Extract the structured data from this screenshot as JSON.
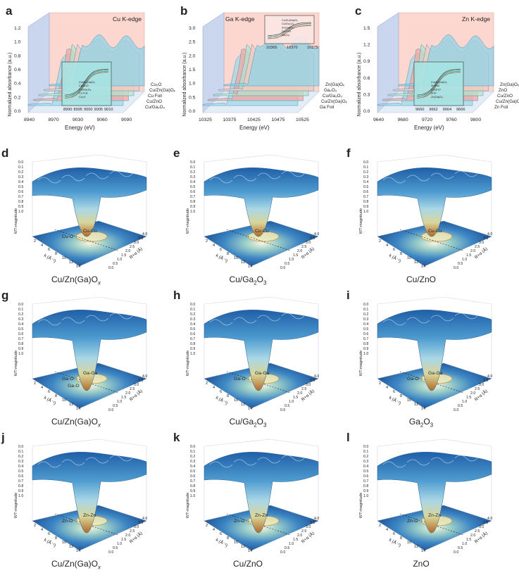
{
  "figure": {
    "xanes_panels": [
      {
        "letter": "a",
        "edge_label": "Cu K-edge",
        "ylabel": "Normalized absorbance (a.u.)",
        "xlabel": "Energy (eV)",
        "x_ticks": [
          "8940",
          "8970",
          "9030",
          "9060",
          "9090"
        ],
        "y_ticks": [
          "0.0",
          "0.2",
          "0.4",
          "0.6",
          "0.8",
          "1.0",
          "1.2"
        ],
        "series": [
          "Cu2O",
          "Cu/Zn(Ga)Ox",
          "Cu Foil",
          "Cu/ZnO",
          "Cu/Ga2O3"
        ],
        "series_display": [
          "Cu₂O",
          "Cu/Zn(Ga)Oₓ",
          "Cu Foil",
          "Cu/ZnO",
          "Cu/Ga₂O₃"
        ],
        "inset_x_ticks": [
          "8990",
          "8995",
          "9000",
          "9005",
          "9010"
        ],
        "inset_legend": [
          "Cu/Zn(Ga)Oₓ",
          "Cu/ZnO",
          "Cu/Ga₂O₃",
          "Cu Foil",
          "Cu₂O"
        ],
        "colors": [
          "#9fd9e8",
          "#f2a7a0",
          "#b7e2c9",
          "#f7c9c1",
          "#8fd3e6"
        ]
      },
      {
        "letter": "b",
        "edge_label": "Ga K-edge",
        "ylabel": "Normalized absorbance (a.u.)",
        "xlabel": "Energy (eV)",
        "x_ticks": [
          "10325",
          "10375",
          "10425",
          "10475",
          "10525"
        ],
        "y_ticks": [
          "0.0",
          "0.5",
          "1.0",
          "1.5",
          "2.0",
          "2.5",
          "3.0"
        ],
        "series": [
          "Zn(Ga)Ox",
          "Ga2O3",
          "Cu/Ga2O3",
          "Cu/Zn(Ga)Ox",
          "Ga Foil"
        ],
        "series_display": [
          "Zn(Ga)Oₓ",
          "Ga₂O₃",
          "Cu/Ga₂O₃",
          "Cu/Zn(Ga)Oₓ",
          "Ga Foil"
        ],
        "inset_x_ticks": [
          "10365",
          "10370",
          "10375"
        ],
        "inset_legend": [
          "Cu/Zn(Ga)Oₓ",
          "Cu/Ga₂O₃",
          "Zn(Ga)Oₓ",
          "Ga Foil",
          "Ga₂O₃"
        ],
        "colors": [
          "#9fd9e8",
          "#f2a7a0",
          "#b7e2c9",
          "#f7c9c1",
          "#8fd3e6"
        ]
      },
      {
        "letter": "c",
        "edge_label": "Zn K-edge",
        "ylabel": "Normalized absorbance (a.u.)",
        "xlabel": "Energy (eV)",
        "x_ticks": [
          "9640",
          "9680",
          "9720",
          "9760",
          "9800"
        ],
        "y_ticks": [
          "0.0",
          "0.3",
          "0.6",
          "0.9",
          "1.2",
          "1.5"
        ],
        "series": [
          "Zn(Ga)Ox",
          "ZnO",
          "Cu/ZnO",
          "Cu/Zn(Ga)Ox",
          "Zn Foil"
        ],
        "series_display": [
          "Zn(Ga)Oₓ",
          "ZnO",
          "Cu/ZnO",
          "Cu/Zn(Ga)Oₓ",
          "Zn Foil"
        ],
        "inset_x_ticks": [
          "9660",
          "9662",
          "9664",
          "9666"
        ],
        "inset_legend": [
          "Cu/Zn(Ga)Oₓ",
          "Zn Foil",
          "Cu/ZnO",
          "ZnO",
          "Zn(Ga)Oₓ"
        ],
        "colors": [
          "#9fd9e8",
          "#f2a7a0",
          "#b7e2c9",
          "#f7c9c1",
          "#8fd3e6"
        ]
      }
    ],
    "wt_panels": [
      {
        "letter": "d",
        "caption_main": "Cu/Zn(Ga)O",
        "caption_sub": "x",
        "labels": [
          "Cu-Cu",
          "Cu-O"
        ],
        "zlabel": "WT-magnitude",
        "xlabel": "k (Å⁻¹)",
        "ylabel": "R+α (Å)"
      },
      {
        "letter": "e",
        "caption_main": "Cu/Ga",
        "caption_sub": "2",
        "caption_tail": "O",
        "caption_sub2": "3",
        "labels": [
          "Cu-Cu"
        ],
        "zlabel": "WT-magnitude",
        "xlabel": "k (Å⁻¹)",
        "ylabel": "R+α (Å)"
      },
      {
        "letter": "f",
        "caption_main": "Cu/ZnO",
        "labels": [
          "Cu-Cu"
        ],
        "zlabel": "WT-magnitude",
        "xlabel": "k (Å⁻¹)",
        "ylabel": "R+α (Å)"
      },
      {
        "letter": "g",
        "caption_main": "Cu/Zn(Ga)O",
        "caption_sub": "x",
        "labels": [
          "Ga-Ga",
          "Ga-O",
          "Ga-O"
        ],
        "zlabel": "WT-magnitude",
        "xlabel": "k (Å⁻¹)",
        "ylabel": "R+α (Å)"
      },
      {
        "letter": "h",
        "caption_main": "Cu/Ga",
        "caption_sub": "2",
        "caption_tail": "O",
        "caption_sub2": "3",
        "labels": [
          "Ga-Ga",
          "Ga-O"
        ],
        "zlabel": "WT-magnitude",
        "xlabel": "k (Å⁻¹)",
        "ylabel": "R+α (Å)"
      },
      {
        "letter": "i",
        "caption_main": "Ga",
        "caption_sub": "2",
        "caption_tail": "O",
        "caption_sub2": "3",
        "labels": [
          "Ga-Ga",
          "Ga-O"
        ],
        "zlabel": "WT-magnitude",
        "xlabel": "k (Å⁻¹)",
        "ylabel": "R+α (Å)"
      },
      {
        "letter": "j",
        "caption_main": "Cu/Zn(Ga)O",
        "caption_sub": "x",
        "labels": [
          "Zn-Zn",
          "Zn-O"
        ],
        "zlabel": "WT-magnitude",
        "xlabel": "k (Å⁻¹)",
        "ylabel": "R+α (Å)"
      },
      {
        "letter": "k",
        "caption_main": "Cu/ZnO",
        "labels": [
          "Zn-Zn",
          "Zn-O"
        ],
        "zlabel": "WT-magnitude",
        "xlabel": "k (Å⁻¹)",
        "ylabel": "R+α (Å)"
      },
      {
        "letter": "l",
        "caption_main": "ZnO",
        "labels": [
          "Zn-Zn",
          "Zn-O"
        ],
        "zlabel": "WT-magnitude",
        "xlabel": "k (Å⁻¹)",
        "ylabel": "R+α (Å)"
      }
    ],
    "wt_z_ticks": [
      "0.0",
      "0.1",
      "0.2",
      "0.3",
      "0.4",
      "0.5",
      "0.6",
      "0.7",
      "0.8",
      "0.9",
      "1.0"
    ],
    "wt_k_ticks": [
      "2",
      "4",
      "6",
      "8",
      "10",
      "12",
      "14"
    ],
    "wt_r_ticks": [
      "0.0",
      "0.5",
      "1.0",
      "1.5",
      "2.0",
      "2.5",
      "3.0",
      "3.5",
      "4.0"
    ]
  },
  "chart_data": [
    {
      "type": "line",
      "title": "Cu K-edge",
      "xlabel": "Energy (eV)",
      "ylabel": "Normalized absorbance (a.u.)",
      "xlim": [
        8940,
        9090
      ],
      "ylim": [
        0.0,
        1.2
      ],
      "series": [
        {
          "name": "Cu₂O"
        },
        {
          "name": "Cu/Zn(Ga)Oₓ"
        },
        {
          "name": "Cu Foil"
        },
        {
          "name": "Cu/ZnO"
        },
        {
          "name": "Cu/Ga₂O₃"
        }
      ]
    },
    {
      "type": "line",
      "title": "Ga K-edge",
      "xlabel": "Energy (eV)",
      "ylabel": "Normalized absorbance (a.u.)",
      "xlim": [
        10325,
        10525
      ],
      "ylim": [
        0.0,
        3.0
      ],
      "series": [
        {
          "name": "Zn(Ga)Oₓ"
        },
        {
          "name": "Ga₂O₃"
        },
        {
          "name": "Cu/Ga₂O₃"
        },
        {
          "name": "Cu/Zn(Ga)Oₓ"
        },
        {
          "name": "Ga Foil"
        }
      ]
    },
    {
      "type": "line",
      "title": "Zn K-edge",
      "xlabel": "Energy (eV)",
      "ylabel": "Normalized absorbance (a.u.)",
      "xlim": [
        9640,
        9800
      ],
      "ylim": [
        0.0,
        1.5
      ],
      "series": [
        {
          "name": "Zn(Ga)Oₓ"
        },
        {
          "name": "ZnO"
        },
        {
          "name": "Cu/ZnO"
        },
        {
          "name": "Cu/Zn(Ga)Oₓ"
        },
        {
          "name": "Zn Foil"
        }
      ]
    }
  ]
}
